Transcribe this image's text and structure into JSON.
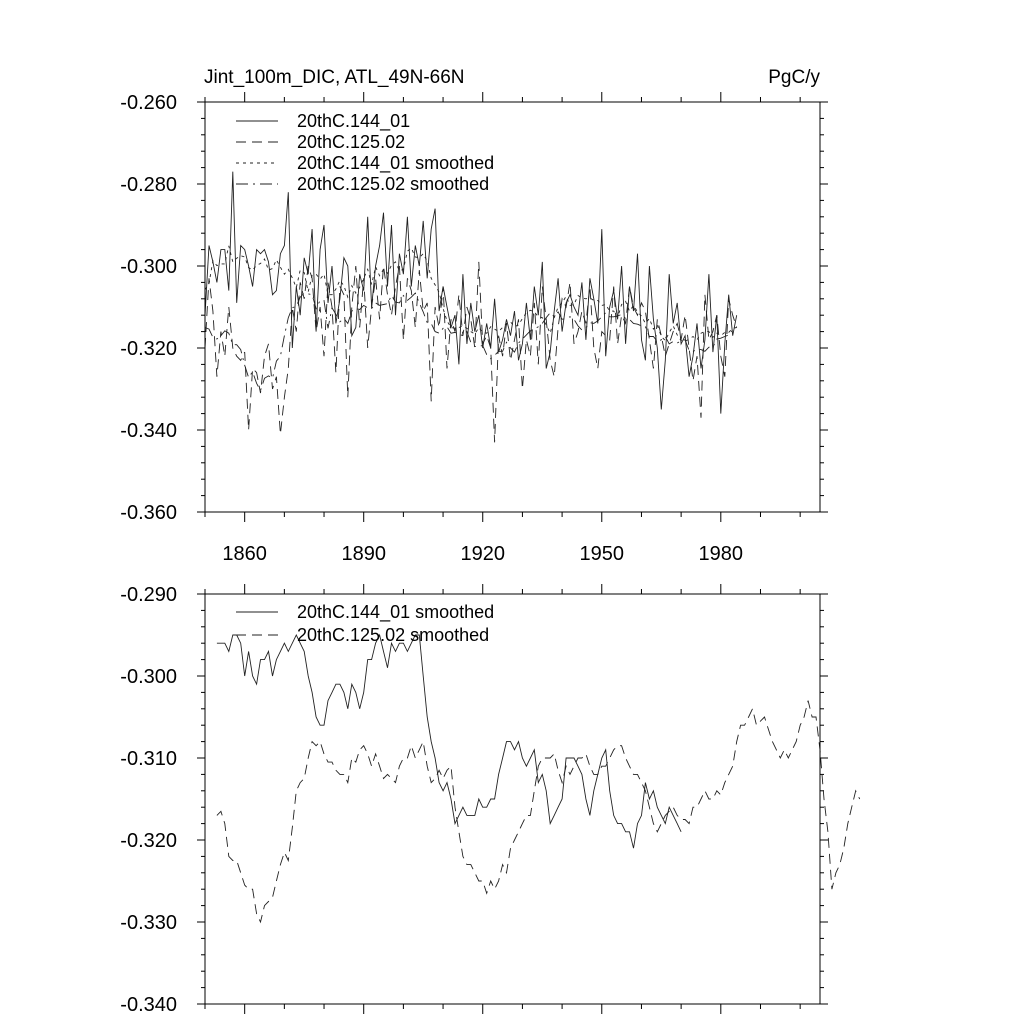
{
  "chart_data": [
    {
      "type": "line",
      "title": "Jint_100m_DIC, ATL_49N-66N",
      "units": "PgC/y",
      "xlim": [
        1850,
        2005
      ],
      "ylim": [
        -0.36,
        -0.26
      ],
      "xticks": [
        1860,
        1890,
        1920,
        1950,
        1980
      ],
      "xtick_labels": [
        "1860",
        "1890",
        "1920",
        "1950",
        "1980"
      ],
      "yticks": [
        -0.26,
        -0.28,
        -0.3,
        -0.32,
        -0.34,
        -0.36
      ],
      "ytick_labels": [
        "-0.260",
        "-0.280",
        "-0.300",
        "-0.320",
        "-0.340",
        "-0.360"
      ],
      "legend": [
        "20thC.144_01",
        "20thC.125.02",
        "20thC.144_01 smoothed",
        "20thC.125.02 smoothed"
      ],
      "series": [
        {
          "name": "20thC.144_01",
          "style": "solid",
          "x0": 1850,
          "values": [
            -0.312,
            -0.295,
            -0.299,
            -0.304,
            -0.296,
            -0.296,
            -0.306,
            -0.277,
            -0.309,
            -0.295,
            -0.296,
            -0.3,
            -0.305,
            -0.296,
            -0.297,
            -0.296,
            -0.299,
            -0.307,
            -0.306,
            -0.297,
            -0.295,
            -0.282,
            -0.32,
            -0.305,
            -0.312,
            -0.298,
            -0.302,
            -0.291,
            -0.316,
            -0.296,
            -0.29,
            -0.309,
            -0.3,
            -0.314,
            -0.308,
            -0.298,
            -0.3,
            -0.317,
            -0.315,
            -0.302,
            -0.306,
            -0.288,
            -0.31,
            -0.3,
            -0.295,
            -0.287,
            -0.305,
            -0.29,
            -0.312,
            -0.297,
            -0.302,
            -0.288,
            -0.305,
            -0.295,
            -0.3,
            -0.289,
            -0.303,
            -0.291,
            -0.286,
            -0.311,
            -0.305,
            -0.31,
            -0.315,
            -0.312,
            -0.324,
            -0.302,
            -0.319,
            -0.309,
            -0.316,
            -0.312,
            -0.32,
            -0.314,
            -0.32,
            -0.308,
            -0.321,
            -0.318,
            -0.313,
            -0.317,
            -0.311,
            -0.323,
            -0.319,
            -0.309,
            -0.318,
            -0.305,
            -0.312,
            -0.299,
            -0.325,
            -0.321,
            -0.311,
            -0.303,
            -0.316,
            -0.309,
            -0.307,
            -0.31,
            -0.312,
            -0.304,
            -0.318,
            -0.303,
            -0.308,
            -0.314,
            -0.291,
            -0.322,
            -0.31,
            -0.306,
            -0.313,
            -0.3,
            -0.319,
            -0.305,
            -0.311,
            -0.297,
            -0.318,
            -0.323,
            -0.3,
            -0.313,
            -0.32,
            -0.335,
            -0.323,
            -0.302,
            -0.314,
            -0.309,
            -0.319,
            -0.317,
            -0.327,
            -0.322,
            -0.314,
            -0.325,
            -0.318,
            -0.302,
            -0.321,
            -0.312,
            -0.336,
            -0.319,
            -0.307,
            -0.317,
            -0.312
          ]
        },
        {
          "name": "20thC.125.02",
          "style": "dashed",
          "x0": 1850,
          "values": [
            -0.32,
            -0.303,
            -0.311,
            -0.327,
            -0.316,
            -0.322,
            -0.31,
            -0.32,
            -0.322,
            -0.323,
            -0.321,
            -0.34,
            -0.325,
            -0.326,
            -0.331,
            -0.322,
            -0.319,
            -0.33,
            -0.327,
            -0.341,
            -0.332,
            -0.325,
            -0.31,
            -0.316,
            -0.304,
            -0.308,
            -0.3,
            -0.303,
            -0.316,
            -0.31,
            -0.322,
            -0.304,
            -0.31,
            -0.326,
            -0.305,
            -0.307,
            -0.332,
            -0.31,
            -0.3,
            -0.315,
            -0.303,
            -0.32,
            -0.31,
            -0.303,
            -0.313,
            -0.3,
            -0.307,
            -0.312,
            -0.305,
            -0.3,
            -0.318,
            -0.303,
            -0.306,
            -0.315,
            -0.301,
            -0.311,
            -0.309,
            -0.333,
            -0.31,
            -0.315,
            -0.305,
            -0.325,
            -0.313,
            -0.316,
            -0.307,
            -0.317,
            -0.31,
            -0.313,
            -0.32,
            -0.299,
            -0.319,
            -0.317,
            -0.32,
            -0.343,
            -0.317,
            -0.322,
            -0.314,
            -0.323,
            -0.318,
            -0.313,
            -0.33,
            -0.318,
            -0.322,
            -0.309,
            -0.324,
            -0.305,
            -0.313,
            -0.323,
            -0.327,
            -0.315,
            -0.308,
            -0.31,
            -0.304,
            -0.319,
            -0.316,
            -0.311,
            -0.314,
            -0.305,
            -0.32,
            -0.325,
            -0.316,
            -0.317,
            -0.318,
            -0.305,
            -0.319,
            -0.312,
            -0.314,
            -0.305,
            -0.31,
            -0.312,
            -0.309,
            -0.311,
            -0.318,
            -0.325,
            -0.313,
            -0.317,
            -0.322,
            -0.319,
            -0.316,
            -0.314,
            -0.318,
            -0.312,
            -0.32,
            -0.328,
            -0.322,
            -0.337,
            -0.307,
            -0.318,
            -0.316,
            -0.312,
            -0.322,
            -0.327,
            -0.308,
            -0.312,
            -0.315
          ]
        },
        {
          "name": "20thC.144_01 smoothed",
          "style": "dotted",
          "x0": 1850,
          "values": [
            -0.3058,
            -0.3043,
            -0.2987,
            -0.2999,
            -0.2995,
            -0.2995,
            -0.2951,
            -0.299,
            -0.2981,
            -0.2975,
            -0.2978,
            -0.3004,
            -0.301,
            -0.2998,
            -0.2994,
            -0.2983,
            -0.301,
            -0.3006,
            -0.2985,
            -0.3003,
            -0.302,
            -0.3008,
            -0.3029,
            -0.3053,
            -0.301,
            -0.3016,
            -0.3063,
            -0.3023,
            -0.302,
            -0.3032,
            -0.302,
            -0.307,
            -0.307,
            -0.3056,
            -0.3035,
            -0.3048,
            -0.3076,
            -0.3048,
            -0.3066,
            -0.3052,
            -0.303,
            -0.3008,
            -0.3045,
            -0.3002,
            -0.3024,
            -0.3008,
            -0.3018,
            -0.2998,
            -0.299,
            -0.3012,
            -0.3008,
            -0.2964,
            -0.2956,
            -0.2978,
            -0.298,
            -0.297,
            -0.2988,
            -0.303,
            -0.3046,
            -0.3064,
            -0.3104,
            -0.3134,
            -0.315,
            -0.3152,
            -0.315,
            -0.3146,
            -0.3152,
            -0.316,
            -0.3166,
            -0.315,
            -0.3162,
            -0.3164,
            -0.3148,
            -0.3154,
            -0.316,
            -0.315,
            -0.314,
            -0.3136,
            -0.3148,
            -0.3144,
            -0.3128,
            -0.3114,
            -0.3108,
            -0.3112,
            -0.3124,
            -0.3126,
            -0.3144,
            -0.3164,
            -0.3126,
            -0.31,
            -0.309,
            -0.3074,
            -0.3096,
            -0.3094,
            -0.3072,
            -0.3078,
            -0.308,
            -0.3078,
            -0.3084,
            -0.3084,
            -0.3096,
            -0.3094,
            -0.311,
            -0.311,
            -0.3126,
            -0.3094,
            -0.3086,
            -0.311,
            -0.3096,
            -0.3112,
            -0.3122,
            -0.314,
            -0.3128,
            -0.3154,
            -0.3144,
            -0.3172,
            -0.3182,
            -0.3162,
            -0.3146,
            -0.3168,
            -0.3182,
            -0.3184,
            -0.3178,
            -0.3172,
            -0.318,
            -0.3164,
            -0.316,
            -0.316,
            -0.3174,
            -0.3164,
            -0.317,
            -0.3162,
            -0.3162,
            -0.3152,
            -0.315
          ]
        },
        {
          "name": "20thC.125.02 smoothed",
          "style": "dashdot",
          "x0": 1850,
          "values": [
            -0.315,
            -0.3154,
            -0.3174,
            -0.3178,
            -0.317,
            -0.3158,
            -0.3164,
            -0.3192,
            -0.3192,
            -0.3204,
            -0.3242,
            -0.3272,
            -0.3258,
            -0.3286,
            -0.3304,
            -0.3274,
            -0.3268,
            -0.3274,
            -0.3232,
            -0.322,
            -0.317,
            -0.3126,
            -0.3102,
            -0.3098,
            -0.3076,
            -0.3066,
            -0.3068,
            -0.307,
            -0.3104,
            -0.3084,
            -0.3084,
            -0.3152,
            -0.3102,
            -0.3118,
            -0.3136,
            -0.3128,
            -0.314,
            -0.311,
            -0.3104,
            -0.3106,
            -0.3096,
            -0.3102,
            -0.3104,
            -0.309,
            -0.3096,
            -0.3094,
            -0.3092,
            -0.3072,
            -0.3088,
            -0.309,
            -0.3072,
            -0.3084,
            -0.3076,
            -0.3066,
            -0.309,
            -0.3112,
            -0.3138,
            -0.314,
            -0.316,
            -0.3164,
            -0.3152,
            -0.3148,
            -0.3164,
            -0.3162,
            -0.3166,
            -0.317,
            -0.316,
            -0.3186,
            -0.3196,
            -0.3196,
            -0.3194,
            -0.3216,
            -0.3226,
            -0.3218,
            -0.3208,
            -0.3208,
            -0.3186,
            -0.32,
            -0.321,
            -0.3188,
            -0.3178,
            -0.3168,
            -0.3158,
            -0.3154,
            -0.3148,
            -0.314,
            -0.3126,
            -0.3114,
            -0.3124,
            -0.3112,
            -0.313,
            -0.3128,
            -0.3124,
            -0.313,
            -0.3146,
            -0.3156,
            -0.315,
            -0.3138,
            -0.314,
            -0.3134,
            -0.3124,
            -0.3114,
            -0.3124,
            -0.3124,
            -0.3122,
            -0.3118,
            -0.3128,
            -0.313,
            -0.314,
            -0.3142,
            -0.3146,
            -0.3148,
            -0.3172,
            -0.3172,
            -0.3184,
            -0.318,
            -0.3172,
            -0.319,
            -0.3184,
            -0.3188,
            -0.3182,
            -0.318,
            -0.3206,
            -0.3208,
            -0.3204,
            -0.3204,
            -0.3208,
            -0.3198,
            -0.3198,
            -0.3178,
            -0.3176,
            -0.3172,
            -0.3168,
            -0.3156,
            -0.3152
          ]
        }
      ]
    },
    {
      "type": "line",
      "title": "",
      "xlim": [
        1850,
        2005
      ],
      "ylim": [
        -0.34,
        -0.29
      ],
      "xticks": [
        1860,
        1890,
        1920,
        1950,
        1980
      ],
      "yticks": [
        -0.29,
        -0.3,
        -0.31,
        -0.32,
        -0.33,
        -0.34
      ],
      "ytick_labels": [
        "-0.290",
        "-0.300",
        "-0.310",
        "-0.320",
        "-0.330",
        "-0.340"
      ],
      "legend": [
        "20thC.144_01 smoothed",
        "20thC.125.02 smoothed"
      ],
      "series": [
        {
          "name": "20thC.144_01 smoothed",
          "style": "solid",
          "x0": 1853,
          "values": [
            -0.296,
            -0.296,
            -0.296,
            -0.297,
            -0.295,
            -0.295,
            -0.296,
            -0.3,
            -0.297,
            -0.3,
            -0.301,
            -0.298,
            -0.298,
            -0.297,
            -0.3,
            -0.298,
            -0.297,
            -0.296,
            -0.297,
            -0.296,
            -0.295,
            -0.296,
            -0.297,
            -0.3,
            -0.302,
            -0.305,
            -0.306,
            -0.306,
            -0.303,
            -0.302,
            -0.301,
            -0.301,
            -0.302,
            -0.304,
            -0.301,
            -0.302,
            -0.304,
            -0.302,
            -0.298,
            -0.298,
            -0.296,
            -0.295,
            -0.297,
            -0.299,
            -0.296,
            -0.297,
            -0.296,
            -0.296,
            -0.297,
            -0.296,
            -0.295,
            -0.295,
            -0.3,
            -0.305,
            -0.308,
            -0.31,
            -0.313,
            -0.314,
            -0.313,
            -0.315,
            -0.318,
            -0.317,
            -0.316,
            -0.317,
            -0.317,
            -0.317,
            -0.315,
            -0.316,
            -0.316,
            -0.315,
            -0.315,
            -0.312,
            -0.31,
            -0.308,
            -0.308,
            -0.309,
            -0.308,
            -0.31,
            -0.311,
            -0.31,
            -0.309,
            -0.313,
            -0.312,
            -0.314,
            -0.318,
            -0.317,
            -0.316,
            -0.315,
            -0.31,
            -0.31,
            -0.31,
            -0.311,
            -0.312,
            -0.315,
            -0.317,
            -0.314,
            -0.312,
            -0.31,
            -0.309,
            -0.314,
            -0.317,
            -0.318,
            -0.318,
            -0.319,
            -0.319,
            -0.321,
            -0.318,
            -0.317,
            -0.313,
            -0.315,
            -0.314,
            -0.316,
            -0.317,
            -0.318,
            -0.316,
            -0.317,
            -0.318,
            -0.319
          ]
        },
        {
          "name": "20thC.125.02 smoothed",
          "style": "dashed",
          "x0": 1853,
          "values": [
            -0.317,
            -0.3165,
            -0.318,
            -0.322,
            -0.3225,
            -0.3225,
            -0.324,
            -0.3255,
            -0.326,
            -0.326,
            -0.329,
            -0.33,
            -0.328,
            -0.3275,
            -0.327,
            -0.325,
            -0.323,
            -0.3215,
            -0.3225,
            -0.3185,
            -0.314,
            -0.313,
            -0.3125,
            -0.31,
            -0.308,
            -0.3085,
            -0.308,
            -0.3095,
            -0.3105,
            -0.3105,
            -0.3115,
            -0.312,
            -0.312,
            -0.313,
            -0.31,
            -0.3105,
            -0.309,
            -0.3085,
            -0.3095,
            -0.311,
            -0.3095,
            -0.311,
            -0.3125,
            -0.312,
            -0.3125,
            -0.313,
            -0.311,
            -0.31,
            -0.31,
            -0.3085,
            -0.31,
            -0.309,
            -0.308,
            -0.311,
            -0.313,
            -0.3125,
            -0.3115,
            -0.3125,
            -0.3115,
            -0.311,
            -0.316,
            -0.319,
            -0.322,
            -0.323,
            -0.323,
            -0.324,
            -0.325,
            -0.325,
            -0.3265,
            -0.325,
            -0.326,
            -0.325,
            -0.323,
            -0.324,
            -0.321,
            -0.32,
            -0.319,
            -0.318,
            -0.317,
            -0.317,
            -0.314,
            -0.311,
            -0.31,
            -0.31,
            -0.31,
            -0.3095,
            -0.3115,
            -0.313,
            -0.311,
            -0.312,
            -0.311,
            -0.31,
            -0.31,
            -0.3095,
            -0.311,
            -0.312,
            -0.312,
            -0.311,
            -0.311,
            -0.31,
            -0.309,
            -0.3085,
            -0.3085,
            -0.31,
            -0.311,
            -0.312,
            -0.312,
            -0.313,
            -0.314,
            -0.316,
            -0.318,
            -0.319,
            -0.318,
            -0.317,
            -0.3165,
            -0.316,
            -0.317,
            -0.3175,
            -0.3175,
            -0.318,
            -0.316,
            -0.316,
            -0.315,
            -0.314,
            -0.315,
            -0.315,
            -0.314,
            -0.3145,
            -0.313,
            -0.312,
            -0.311,
            -0.308,
            -0.306,
            -0.306,
            -0.305,
            -0.304,
            -0.306,
            -0.3055,
            -0.305,
            -0.3065,
            -0.308,
            -0.309,
            -0.31,
            -0.309,
            -0.31,
            -0.309,
            -0.308,
            -0.306,
            -0.305,
            -0.303,
            -0.305,
            -0.305,
            -0.309,
            -0.315,
            -0.319,
            -0.326,
            -0.324,
            -0.323,
            -0.321,
            -0.318,
            -0.316,
            -0.314,
            -0.315
          ]
        }
      ]
    }
  ]
}
